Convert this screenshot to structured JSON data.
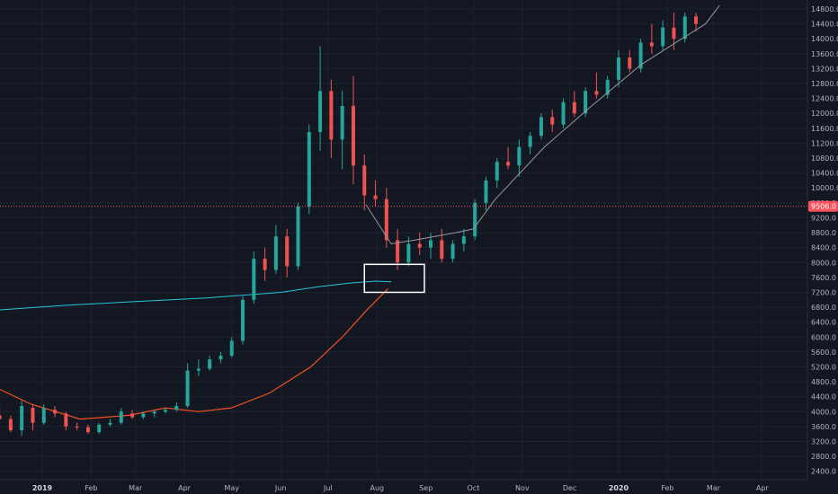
{
  "chart_data": {
    "type": "candlestick",
    "title": "",
    "xlabel": "",
    "ylabel": "",
    "ylim": [
      2200,
      14800
    ],
    "y_ticks": [
      2400,
      2800,
      3200,
      3600,
      4000,
      4400,
      4800,
      5200,
      5600,
      6000,
      6400,
      6800,
      7200,
      7600,
      8000,
      8400,
      8800,
      9200,
      9600,
      10000,
      10400,
      10800,
      11200,
      11600,
      12000,
      12400,
      12800,
      13200,
      13600,
      14000,
      14400,
      14800
    ],
    "y_tick_format": "one_decimal",
    "x_ticks": [
      {
        "label": "Dec",
        "date": "2018-12-01"
      },
      {
        "label": "2019",
        "date": "2019-01-01",
        "bold": true
      },
      {
        "label": "Feb",
        "date": "2019-02-01"
      },
      {
        "label": "Mar",
        "date": "2019-03-01"
      },
      {
        "label": "Apr",
        "date": "2019-04-01"
      },
      {
        "label": "May",
        "date": "2019-05-01"
      },
      {
        "label": "Jun",
        "date": "2019-06-01"
      },
      {
        "label": "Jul",
        "date": "2019-07-01"
      },
      {
        "label": "Aug",
        "date": "2019-08-01"
      },
      {
        "label": "Sep",
        "date": "2019-09-01"
      },
      {
        "label": "Oct",
        "date": "2019-10-01"
      },
      {
        "label": "Nov",
        "date": "2019-11-01"
      },
      {
        "label": "Dec",
        "date": "2019-12-01"
      },
      {
        "label": "2020",
        "date": "2020-01-01",
        "bold": true
      },
      {
        "label": "Feb",
        "date": "2020-02-01"
      },
      {
        "label": "Mar",
        "date": "2020-03-01"
      },
      {
        "label": "Apr",
        "date": "2020-04-01"
      }
    ],
    "price_line": {
      "value": 9506,
      "label": "9506.0",
      "color": "#f7525f"
    },
    "colors": {
      "up": "#26a69a",
      "down": "#ef5350",
      "ma_long": "#26c6da",
      "ma_short": "#f4511e",
      "projection": "#9598a1",
      "grid": "#1e2230",
      "background": "#131722",
      "axis_text": "#b2b5be"
    },
    "candles_ohlc": [
      [
        "2018-12-05",
        3900,
        4150,
        3700,
        3800
      ],
      [
        "2018-12-12",
        3800,
        3900,
        3450,
        3500
      ],
      [
        "2018-12-19",
        3500,
        4300,
        3350,
        4150
      ],
      [
        "2018-12-26",
        4100,
        4200,
        3500,
        3700
      ],
      [
        "2019-01-02",
        3700,
        4200,
        3650,
        4100
      ],
      [
        "2019-01-09",
        4050,
        4150,
        3850,
        3950
      ],
      [
        "2019-01-16",
        3950,
        4000,
        3500,
        3600
      ],
      [
        "2019-01-23",
        3600,
        3700,
        3500,
        3580
      ],
      [
        "2019-01-30",
        3580,
        3650,
        3400,
        3450
      ],
      [
        "2019-02-06",
        3450,
        3700,
        3400,
        3650
      ],
      [
        "2019-02-13",
        3650,
        3800,
        3600,
        3700
      ],
      [
        "2019-02-20",
        3700,
        4100,
        3650,
        4000
      ],
      [
        "2019-02-27",
        3950,
        4050,
        3800,
        3850
      ],
      [
        "2019-03-06",
        3850,
        4000,
        3800,
        3950
      ],
      [
        "2019-03-13",
        3950,
        4050,
        3850,
        4000
      ],
      [
        "2019-03-20",
        4000,
        4100,
        3950,
        4050
      ],
      [
        "2019-03-27",
        4050,
        4250,
        4000,
        4150
      ],
      [
        "2019-04-03",
        4150,
        5300,
        4100,
        5100
      ],
      [
        "2019-04-10",
        5100,
        5400,
        4950,
        5150
      ],
      [
        "2019-04-17",
        5150,
        5500,
        5100,
        5400
      ],
      [
        "2019-04-24",
        5400,
        5600,
        5300,
        5500
      ],
      [
        "2019-05-01",
        5500,
        6000,
        5450,
        5900
      ],
      [
        "2019-05-08",
        5900,
        7100,
        5800,
        7000
      ],
      [
        "2019-05-15",
        7000,
        8300,
        6900,
        8100
      ],
      [
        "2019-05-22",
        8100,
        8400,
        7500,
        7800
      ],
      [
        "2019-05-29",
        7800,
        9000,
        7700,
        8700
      ],
      [
        "2019-06-05",
        8700,
        8900,
        7600,
        7900
      ],
      [
        "2019-06-12",
        7900,
        9600,
        7800,
        9500
      ],
      [
        "2019-06-19",
        9500,
        11700,
        9300,
        11500
      ],
      [
        "2019-06-26",
        11500,
        13800,
        11000,
        12600
      ],
      [
        "2019-07-03",
        12600,
        12900,
        10800,
        11300
      ],
      [
        "2019-07-10",
        11300,
        12600,
        10500,
        12200
      ],
      [
        "2019-07-17",
        12200,
        13000,
        10100,
        10600
      ],
      [
        "2019-07-24",
        10600,
        10900,
        9400,
        9800
      ],
      [
        "2019-07-31",
        9800,
        10200,
        9500,
        9700
      ],
      [
        "2019-08-07",
        9700,
        10000,
        8400,
        8600
      ],
      [
        "2019-08-14",
        8600,
        8900,
        7800,
        8000
      ],
      [
        "2019-08-21",
        8000,
        8700,
        7900,
        8500
      ],
      [
        "2019-08-28",
        8500,
        8800,
        8200,
        8400
      ],
      [
        "2019-09-04",
        8400,
        8800,
        8100,
        8600
      ],
      [
        "2019-09-11",
        8600,
        8900,
        8000,
        8100
      ],
      [
        "2019-09-18",
        8100,
        8600,
        8000,
        8500
      ],
      [
        "2019-09-25",
        8500,
        8900,
        8300,
        8700
      ],
      [
        "2019-10-02",
        8700,
        9700,
        8600,
        9600
      ],
      [
        "2019-10-09",
        9600,
        10300,
        9400,
        10200
      ],
      [
        "2019-10-16",
        10200,
        10800,
        10000,
        10700
      ],
      [
        "2019-10-23",
        10700,
        11100,
        10500,
        10600
      ],
      [
        "2019-10-30",
        10600,
        11300,
        10300,
        11100
      ],
      [
        "2019-11-06",
        11100,
        11500,
        10900,
        11400
      ],
      [
        "2019-11-13",
        11400,
        12000,
        11300,
        11900
      ],
      [
        "2019-11-20",
        11900,
        12100,
        11500,
        11700
      ],
      [
        "2019-11-27",
        11700,
        12400,
        11600,
        12300
      ],
      [
        "2019-12-04",
        12300,
        12600,
        11900,
        12000
      ],
      [
        "2019-12-11",
        12000,
        12700,
        11900,
        12600
      ],
      [
        "2019-12-18",
        12600,
        13100,
        12400,
        12500
      ],
      [
        "2019-12-25",
        12500,
        13000,
        12400,
        12900
      ],
      [
        "2020-01-01",
        12900,
        13700,
        12700,
        13500
      ],
      [
        "2020-01-08",
        13500,
        13700,
        13100,
        13200
      ],
      [
        "2020-01-15",
        13200,
        14000,
        13100,
        13900
      ],
      [
        "2020-01-22",
        13900,
        14400,
        13600,
        13800
      ],
      [
        "2020-01-29",
        13800,
        14500,
        13700,
        14300
      ],
      [
        "2020-02-05",
        14300,
        14700,
        13700,
        14000
      ],
      [
        "2020-02-12",
        14000,
        14700,
        13900,
        14600
      ],
      [
        "2020-02-19",
        14600,
        14700,
        14200,
        14400
      ]
    ],
    "ma_long": [
      [
        "2018-11-25",
        6700
      ],
      [
        "2019-01-15",
        6850
      ],
      [
        "2019-03-01",
        6950
      ],
      [
        "2019-04-15",
        7050
      ],
      [
        "2019-06-01",
        7200
      ],
      [
        "2019-06-25",
        7350
      ],
      [
        "2019-07-15",
        7450
      ],
      [
        "2019-07-31",
        7500
      ],
      [
        "2019-08-10",
        7480
      ]
    ],
    "ma_short": [
      [
        "2018-11-25",
        4800
      ],
      [
        "2018-12-25",
        4200
      ],
      [
        "2019-01-25",
        3800
      ],
      [
        "2019-02-25",
        3900
      ],
      [
        "2019-03-20",
        4100
      ],
      [
        "2019-04-10",
        4000
      ],
      [
        "2019-05-01",
        4100
      ],
      [
        "2019-05-25",
        4500
      ],
      [
        "2019-06-20",
        5200
      ],
      [
        "2019-07-10",
        6000
      ],
      [
        "2019-07-25",
        6700
      ],
      [
        "2019-08-08",
        7300
      ]
    ],
    "projection_path": [
      [
        "2019-07-25",
        9550
      ],
      [
        "2019-08-10",
        8500
      ],
      [
        "2019-08-25",
        8600
      ],
      [
        "2019-09-20",
        8800
      ],
      [
        "2019-10-01",
        8900
      ],
      [
        "2019-10-15",
        9700
      ],
      [
        "2019-11-15",
        11100
      ],
      [
        "2019-12-15",
        12200
      ],
      [
        "2020-01-15",
        13300
      ],
      [
        "2020-02-10",
        14000
      ],
      [
        "2020-02-25",
        14400
      ],
      [
        "2020-03-05",
        14900
      ]
    ],
    "highlight_box": {
      "x0": "2019-07-24",
      "x1": "2019-08-31",
      "y0": 7200,
      "y1": 7950,
      "color": "#ffffff"
    }
  }
}
